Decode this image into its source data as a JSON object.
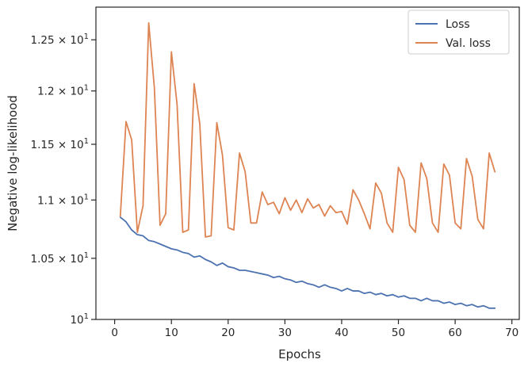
{
  "chart_data": {
    "type": "line",
    "title": "",
    "xlabel": "Epochs",
    "ylabel": "Negative log-likelihood",
    "xlim": [
      -3.3,
      71.3
    ],
    "ylim": [
      10.0,
      12.83
    ],
    "y_scale": "log",
    "grid": false,
    "legend_position": "top-right",
    "x_ticks": [
      {
        "value": 0,
        "label": "0"
      },
      {
        "value": 10,
        "label": "10"
      },
      {
        "value": 20,
        "label": "20"
      },
      {
        "value": 30,
        "label": "30"
      },
      {
        "value": 40,
        "label": "40"
      },
      {
        "value": 50,
        "label": "50"
      },
      {
        "value": 60,
        "label": "60"
      },
      {
        "value": 70,
        "label": "70"
      }
    ],
    "y_ticks": [
      {
        "value": 10.0,
        "base": "10",
        "exp": "1"
      },
      {
        "value": 10.5,
        "base": "1.05 × 10",
        "exp": "1"
      },
      {
        "value": 11.0,
        "base": "1.1 × 10",
        "exp": "1"
      },
      {
        "value": 11.5,
        "base": "1.15 × 10",
        "exp": "1"
      },
      {
        "value": 12.0,
        "base": "1.2 × 10",
        "exp": "1"
      },
      {
        "value": 12.5,
        "base": "1.25 × 10",
        "exp": "1"
      }
    ],
    "x": [
      1,
      2,
      3,
      4,
      5,
      6,
      7,
      8,
      9,
      10,
      11,
      12,
      13,
      14,
      15,
      16,
      17,
      18,
      19,
      20,
      21,
      22,
      23,
      24,
      25,
      26,
      27,
      28,
      29,
      30,
      31,
      32,
      33,
      34,
      35,
      36,
      37,
      38,
      39,
      40,
      41,
      42,
      43,
      44,
      45,
      46,
      47,
      48,
      49,
      50,
      51,
      52,
      53,
      54,
      55,
      56,
      57,
      58,
      59,
      60,
      61,
      62,
      63,
      64,
      65,
      66,
      67
    ],
    "series": [
      {
        "name": "Loss",
        "color": "#4c72b0",
        "values": [
          10.85,
          10.81,
          10.74,
          10.7,
          10.69,
          10.65,
          10.64,
          10.62,
          10.6,
          10.58,
          10.57,
          10.55,
          10.54,
          10.51,
          10.52,
          10.49,
          10.47,
          10.44,
          10.46,
          10.43,
          10.42,
          10.4,
          10.4,
          10.39,
          10.38,
          10.37,
          10.36,
          10.34,
          10.35,
          10.33,
          10.32,
          10.3,
          10.31,
          10.29,
          10.28,
          10.26,
          10.28,
          10.26,
          10.25,
          10.23,
          10.25,
          10.23,
          10.23,
          10.21,
          10.22,
          10.2,
          10.21,
          10.19,
          10.2,
          10.18,
          10.19,
          10.17,
          10.17,
          10.15,
          10.17,
          10.15,
          10.15,
          10.13,
          10.14,
          10.12,
          10.13,
          10.11,
          10.12,
          10.1,
          10.11,
          10.09,
          10.09
        ]
      },
      {
        "name": "Val. loss",
        "color": "#dd8452",
        "values": [
          10.86,
          11.71,
          11.54,
          10.72,
          10.95,
          12.67,
          12.03,
          10.78,
          10.88,
          12.38,
          11.87,
          10.72,
          10.74,
          12.07,
          11.69,
          10.68,
          10.69,
          11.7,
          11.4,
          10.76,
          10.74,
          11.42,
          11.25,
          10.8,
          10.8,
          11.07,
          10.96,
          10.98,
          10.88,
          11.02,
          10.91,
          11.0,
          10.89,
          11.01,
          10.93,
          10.96,
          10.86,
          10.95,
          10.89,
          10.9,
          10.79,
          11.09,
          11.0,
          10.88,
          10.75,
          11.15,
          11.06,
          10.8,
          10.72,
          11.29,
          11.18,
          10.78,
          10.72,
          11.33,
          11.19,
          10.8,
          10.72,
          11.32,
          11.22,
          10.8,
          10.75,
          11.37,
          11.21,
          10.83,
          10.75,
          11.42,
          11.25
        ]
      }
    ]
  }
}
